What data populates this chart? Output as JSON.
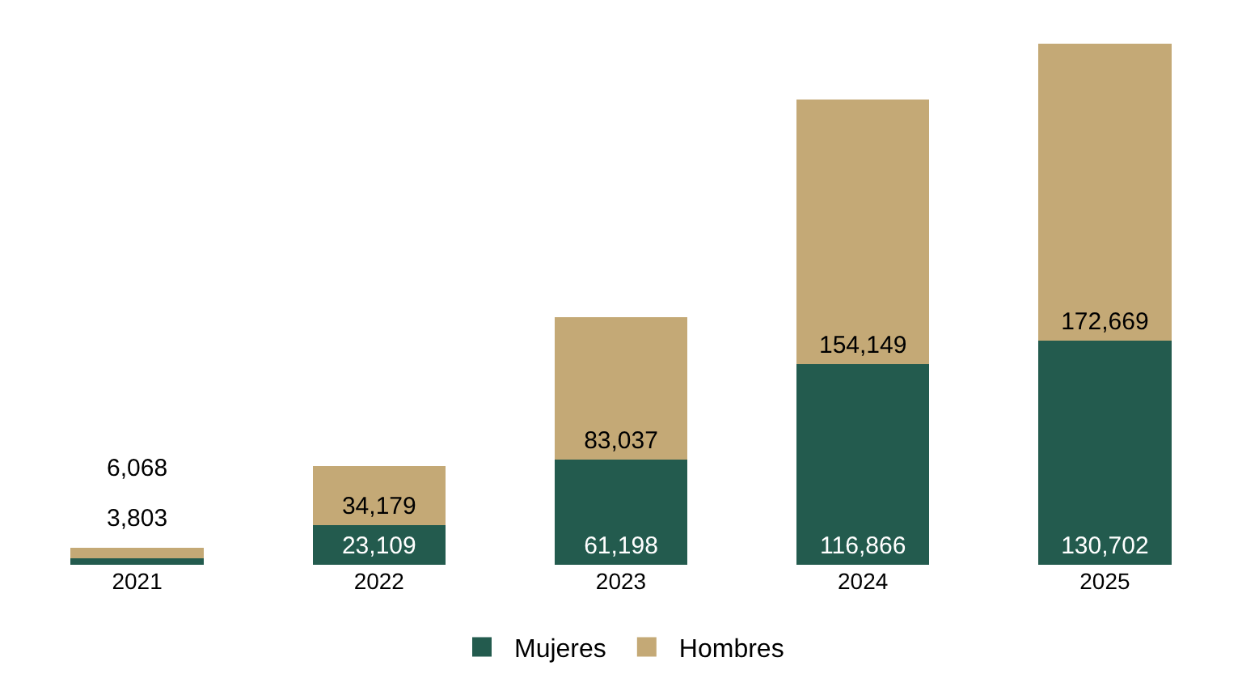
{
  "chart_data": {
    "type": "bar",
    "stacked": true,
    "categories": [
      "2021",
      "2022",
      "2023",
      "2024",
      "2025"
    ],
    "series": [
      {
        "name": "Mujeres",
        "color": "#235b4e",
        "values": [
          3803,
          23109,
          61198,
          116866,
          130702
        ],
        "value_labels": [
          "3,803",
          "23,109",
          "61,198",
          "116,866",
          "130,702"
        ]
      },
      {
        "name": "Hombres",
        "color": "#c4a976",
        "values": [
          6068,
          34179,
          83037,
          154149,
          172669
        ],
        "value_labels": [
          "6,068",
          "34,179",
          "83,037",
          "154,149",
          "172,669"
        ]
      }
    ],
    "legend": "bottom"
  }
}
